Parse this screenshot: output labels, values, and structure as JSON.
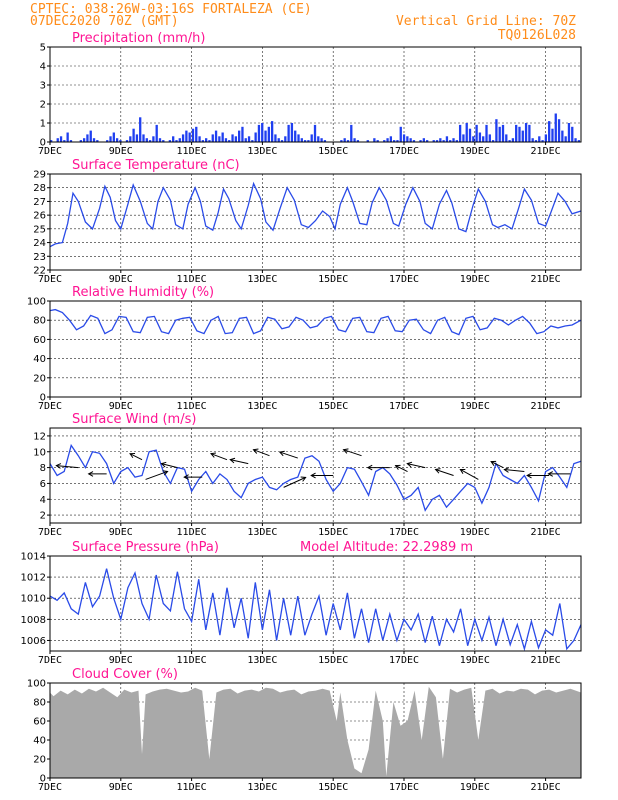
{
  "header": {
    "line1": "CPTEC:   038:26W-03:16S  FORTALEZA (CE)",
    "line2": "07DEC2020 70Z (GMT)",
    "right1": "Vertical Grid Line: 70Z",
    "right2": "TQ0126L028"
  },
  "x_ticks": [
    "7DEC",
    "9DEC",
    "11DEC",
    "13DEC",
    "15DEC",
    "17DEC",
    "19DEC",
    "21DEC"
  ],
  "colors": {
    "line": "#2a4be8",
    "bar": "#1f3ff0",
    "cloud": "#a9a9a9",
    "title": "#ff1493",
    "header": "#ff8c1a"
  },
  "chart_data": [
    {
      "id": "precip",
      "type": "bar",
      "title": "Precipitation (mm/h)",
      "ylim": [
        0,
        5
      ],
      "yticks": [
        0,
        1,
        2,
        3,
        4,
        5
      ],
      "xlim": [
        0,
        15
      ],
      "x_units": "days since 7DEC",
      "values": [
        0.1,
        0,
        0.2,
        0.3,
        0.1,
        0.5,
        0.1,
        0,
        0,
        0.1,
        0.2,
        0.4,
        0.6,
        0.2,
        0.1,
        0,
        0,
        0.1,
        0.3,
        0.5,
        0.2,
        0.1,
        0,
        0.1,
        0.3,
        0.7,
        0.4,
        1.3,
        0.4,
        0.2,
        0.1,
        0.3,
        0.9,
        0.2,
        0.1,
        0,
        0.1,
        0.3,
        0.1,
        0.2,
        0.4,
        0.6,
        0.5,
        0.7,
        0.8,
        0.3,
        0.1,
        0.2,
        0.1,
        0.4,
        0.6,
        0.3,
        0.5,
        0.2,
        0.1,
        0.4,
        0.3,
        0.6,
        0.8,
        0.2,
        0.3,
        0.1,
        0.5,
        0.9,
        1.0,
        0.6,
        0.8,
        1.1,
        0.4,
        0.2,
        0.1,
        0.3,
        0.9,
        1.0,
        0.6,
        0.4,
        0.2,
        0.1,
        0.1,
        0.4,
        0.9,
        0.3,
        0.2,
        0.1,
        0,
        0,
        0,
        0,
        0.1,
        0.2,
        0.1,
        0.9,
        0.2,
        0.1,
        0,
        0,
        0.1,
        0,
        0.2,
        0.1,
        0,
        0.1,
        0.2,
        0.3,
        0.1,
        0.1,
        0.8,
        0.4,
        0.3,
        0.2,
        0.1,
        0,
        0.1,
        0.2,
        0.1,
        0,
        0.1,
        0.1,
        0.2,
        0.1,
        0.3,
        0.1,
        0.2,
        0.1,
        0.9,
        0.4,
        1.0,
        0.7,
        0.3,
        0.9,
        0.5,
        0.3,
        0.9,
        0.4,
        0.1,
        1.2,
        0.8,
        0.9,
        0.4,
        0.1,
        0.2,
        0.9,
        0.8,
        0.6,
        1.0,
        0.9,
        0.2,
        0.1,
        0.3,
        0.1,
        0.4,
        1.1,
        0.7,
        1.5,
        1.2,
        0.6,
        0.3,
        1.0,
        0.8,
        0.2,
        0.1
      ]
    },
    {
      "id": "temp",
      "type": "line",
      "title": "Surface Temperature (nC)",
      "ylim": [
        22,
        29
      ],
      "yticks": [
        22,
        23,
        24,
        25,
        26,
        27,
        28,
        29
      ],
      "xlim": [
        0,
        15
      ],
      "x": [
        0,
        0.15,
        0.35,
        0.5,
        0.65,
        0.8,
        1.0,
        1.2,
        1.4,
        1.55,
        1.7,
        1.85,
        2.0,
        2.2,
        2.35,
        2.55,
        2.75,
        2.9,
        3.05,
        3.2,
        3.4,
        3.55,
        3.75,
        3.9,
        4.1,
        4.25,
        4.4,
        4.6,
        4.75,
        4.9,
        5.05,
        5.25,
        5.4,
        5.6,
        5.75,
        5.95,
        6.1,
        6.3,
        6.5,
        6.7,
        6.9,
        7.1,
        7.3,
        7.5,
        7.7,
        7.9,
        8.05,
        8.2,
        8.4,
        8.55,
        8.75,
        8.95,
        9.1,
        9.3,
        9.5,
        9.7,
        9.85,
        10.05,
        10.25,
        10.45,
        10.6,
        10.8,
        11.0,
        11.2,
        11.35,
        11.55,
        11.75,
        11.95,
        12.1,
        12.3,
        12.5,
        12.65,
        12.85,
        13.05,
        13.25,
        13.4,
        13.6,
        13.8,
        14.0,
        14.15,
        14.35,
        14.55,
        14.75,
        15.0
      ],
      "y": [
        23.7,
        23.9,
        24.0,
        25.4,
        27.6,
        27.0,
        25.5,
        25.0,
        26.5,
        28.1,
        27.3,
        25.6,
        25.0,
        26.8,
        28.2,
        27.0,
        25.4,
        25.0,
        27.0,
        28.0,
        27.1,
        25.3,
        25.0,
        26.8,
        28.0,
        27.0,
        25.2,
        24.9,
        26.2,
        27.9,
        27.2,
        25.6,
        25.0,
        26.7,
        28.3,
        27.2,
        25.5,
        24.9,
        26.5,
        28.0,
        27.1,
        25.3,
        25.1,
        25.6,
        26.3,
        25.9,
        25.0,
        26.8,
        28.0,
        27.0,
        25.4,
        25.3,
        26.9,
        28.0,
        27.1,
        25.4,
        25.2,
        26.8,
        28.0,
        27.0,
        25.4,
        25.0,
        26.8,
        27.8,
        26.9,
        25.0,
        24.8,
        26.7,
        27.9,
        27.0,
        25.3,
        25.1,
        25.3,
        25.0,
        26.6,
        27.9,
        27.1,
        25.4,
        25.2,
        26.2,
        27.6,
        27.0,
        26.1,
        26.3
      ]
    },
    {
      "id": "rh",
      "type": "line",
      "title": "Relative Humidity (%)",
      "ylim": [
        0,
        100
      ],
      "yticks": [
        0,
        20,
        40,
        60,
        80,
        100
      ],
      "xlim": [
        0,
        15
      ],
      "x": [
        0,
        0.15,
        0.35,
        0.55,
        0.75,
        0.95,
        1.15,
        1.35,
        1.55,
        1.75,
        1.95,
        2.15,
        2.35,
        2.55,
        2.75,
        2.95,
        3.15,
        3.35,
        3.55,
        3.75,
        3.95,
        4.15,
        4.35,
        4.55,
        4.75,
        4.95,
        5.15,
        5.35,
        5.55,
        5.75,
        5.95,
        6.15,
        6.35,
        6.55,
        6.75,
        6.95,
        7.15,
        7.35,
        7.55,
        7.75,
        7.95,
        8.15,
        8.35,
        8.55,
        8.75,
        8.95,
        9.15,
        9.35,
        9.55,
        9.75,
        9.95,
        10.15,
        10.35,
        10.55,
        10.75,
        10.95,
        11.15,
        11.35,
        11.55,
        11.75,
        11.95,
        12.15,
        12.35,
        12.55,
        12.75,
        12.95,
        13.15,
        13.35,
        13.55,
        13.75,
        13.95,
        14.15,
        14.35,
        14.55,
        14.75,
        15.0
      ],
      "y": [
        90,
        91,
        88,
        80,
        70,
        74,
        85,
        82,
        66,
        70,
        84,
        83,
        68,
        67,
        83,
        84,
        68,
        66,
        80,
        82,
        83,
        69,
        66,
        80,
        84,
        66,
        67,
        82,
        83,
        66,
        69,
        83,
        81,
        71,
        73,
        83,
        80,
        72,
        74,
        82,
        84,
        70,
        68,
        82,
        83,
        68,
        67,
        82,
        84,
        69,
        68,
        80,
        81,
        70,
        66,
        80,
        83,
        68,
        65,
        82,
        84,
        70,
        72,
        82,
        80,
        75,
        80,
        84,
        77,
        66,
        68,
        74,
        72,
        74,
        75,
        80
      ]
    },
    {
      "id": "wind",
      "type": "line",
      "title": "Surface Wind (m/s)",
      "ylim": [
        1,
        13
      ],
      "yticks": [
        2,
        4,
        6,
        8,
        10,
        12
      ],
      "xlim": [
        0,
        15
      ],
      "x": [
        0,
        0.2,
        0.4,
        0.6,
        0.8,
        1.0,
        1.2,
        1.4,
        1.6,
        1.8,
        2.0,
        2.2,
        2.4,
        2.6,
        2.8,
        3.0,
        3.2,
        3.4,
        3.6,
        3.8,
        4.0,
        4.2,
        4.4,
        4.6,
        4.8,
        5.0,
        5.2,
        5.4,
        5.6,
        5.8,
        6.0,
        6.2,
        6.4,
        6.6,
        6.8,
        7.0,
        7.2,
        7.4,
        7.6,
        7.8,
        8.0,
        8.2,
        8.4,
        8.6,
        8.8,
        9.0,
        9.2,
        9.4,
        9.6,
        9.8,
        10.0,
        10.2,
        10.4,
        10.6,
        10.8,
        11.0,
        11.2,
        11.4,
        11.6,
        11.8,
        12.0,
        12.2,
        12.4,
        12.6,
        12.8,
        13.0,
        13.2,
        13.4,
        13.6,
        13.8,
        14.0,
        14.2,
        14.4,
        14.6,
        14.8,
        15.0
      ],
      "y": [
        8.5,
        7.0,
        7.5,
        10.8,
        9.5,
        8.0,
        10.0,
        9.8,
        8.5,
        6.0,
        7.5,
        8.0,
        6.8,
        7.0,
        10.0,
        10.2,
        7.5,
        6.0,
        8.0,
        7.8,
        5.0,
        6.5,
        7.5,
        6.0,
        7.2,
        6.5,
        5.0,
        4.2,
        6.0,
        6.5,
        6.8,
        5.5,
        5.2,
        6.0,
        6.5,
        6.8,
        9.2,
        9.5,
        8.8,
        6.5,
        5.0,
        6.0,
        8.0,
        7.8,
        6.2,
        4.5,
        7.5,
        8.0,
        7.2,
        5.8,
        4.0,
        4.5,
        5.5,
        2.6,
        4.0,
        4.5,
        3.0,
        4.0,
        5.0,
        6.0,
        5.5,
        3.5,
        5.5,
        8.5,
        7.0,
        6.5,
        6.0,
        7.0,
        5.5,
        3.8,
        7.5,
        8.0,
        6.8,
        5.5,
        8.5,
        8.8
      ]
    },
    {
      "id": "pressure",
      "type": "line",
      "title": "Surface Pressure (hPa)",
      "annotation": "Model Altitude: 22.2989 m",
      "ylim": [
        1005,
        1014
      ],
      "yticks": [
        1006,
        1008,
        1010,
        1012,
        1014
      ],
      "xlim": [
        0,
        15
      ],
      "x": [
        0,
        0.2,
        0.4,
        0.6,
        0.8,
        1.0,
        1.2,
        1.4,
        1.6,
        1.8,
        2.0,
        2.2,
        2.4,
        2.6,
        2.8,
        3.0,
        3.2,
        3.4,
        3.6,
        3.8,
        4.0,
        4.2,
        4.4,
        4.6,
        4.8,
        5.0,
        5.2,
        5.4,
        5.6,
        5.8,
        6.0,
        6.2,
        6.4,
        6.6,
        6.8,
        7.0,
        7.2,
        7.4,
        7.6,
        7.8,
        8.0,
        8.2,
        8.4,
        8.6,
        8.8,
        9.0,
        9.2,
        9.4,
        9.6,
        9.8,
        10.0,
        10.2,
        10.4,
        10.6,
        10.8,
        11.0,
        11.2,
        11.4,
        11.6,
        11.8,
        12.0,
        12.2,
        12.4,
        12.6,
        12.8,
        13.0,
        13.2,
        13.4,
        13.6,
        13.8,
        14.0,
        14.2,
        14.4,
        14.6,
        14.8,
        15.0
      ],
      "y": [
        1010.2,
        1009.8,
        1010.5,
        1009.0,
        1008.5,
        1011.5,
        1009.2,
        1010.2,
        1012.8,
        1010.0,
        1008.0,
        1011.0,
        1012.4,
        1009.5,
        1008.0,
        1012.2,
        1009.5,
        1008.8,
        1012.5,
        1009.0,
        1007.8,
        1011.8,
        1007.0,
        1010.5,
        1006.5,
        1011.0,
        1007.2,
        1010.0,
        1006.2,
        1011.5,
        1007.0,
        1010.8,
        1006.0,
        1010.0,
        1006.5,
        1010.2,
        1006.5,
        1008.5,
        1010.2,
        1006.5,
        1009.5,
        1007.0,
        1010.5,
        1006.2,
        1009.0,
        1005.8,
        1009.0,
        1006.0,
        1008.5,
        1006.0,
        1008.0,
        1007.0,
        1008.5,
        1005.8,
        1008.3,
        1005.5,
        1008.0,
        1006.8,
        1009.0,
        1005.5,
        1008.0,
        1006.0,
        1008.2,
        1005.5,
        1008.0,
        1005.6,
        1007.5,
        1005.2,
        1007.8,
        1005.3,
        1007.0,
        1006.5,
        1009.5,
        1005.2,
        1006.0,
        1007.5
      ]
    },
    {
      "id": "cloud",
      "type": "area",
      "title": "Cloud Cover (%)",
      "ylim": [
        0,
        100
      ],
      "yticks": [
        0,
        20,
        40,
        60,
        80,
        100
      ],
      "xlim": [
        0,
        15
      ],
      "x": [
        0,
        0.1,
        0.3,
        0.5,
        0.7,
        0.9,
        1.1,
        1.3,
        1.5,
        1.7,
        1.9,
        2.1,
        2.3,
        2.5,
        2.6,
        2.7,
        2.9,
        3.1,
        3.3,
        3.5,
        3.7,
        3.9,
        4.1,
        4.3,
        4.5,
        4.7,
        4.9,
        5.1,
        5.3,
        5.5,
        5.7,
        5.9,
        6.1,
        6.3,
        6.5,
        6.7,
        6.9,
        7.1,
        7.3,
        7.5,
        7.7,
        7.9,
        8.1,
        8.2,
        8.4,
        8.6,
        8.8,
        9.0,
        9.2,
        9.4,
        9.5,
        9.7,
        9.9,
        10.1,
        10.3,
        10.5,
        10.7,
        10.9,
        11.1,
        11.3,
        11.5,
        11.7,
        11.9,
        12.1,
        12.3,
        12.5,
        12.7,
        12.9,
        13.1,
        13.3,
        13.5,
        13.7,
        13.9,
        14.1,
        14.3,
        14.5,
        14.7,
        15.0
      ],
      "y": [
        90,
        86,
        92,
        88,
        93,
        89,
        94,
        91,
        95,
        90,
        85,
        93,
        90,
        92,
        25,
        88,
        91,
        93,
        94,
        92,
        90,
        91,
        95,
        92,
        20,
        90,
        93,
        94,
        89,
        92,
        93,
        91,
        95,
        94,
        90,
        92,
        93,
        88,
        91,
        92,
        94,
        92,
        60,
        90,
        40,
        10,
        5,
        30,
        92,
        60,
        2,
        80,
        55,
        60,
        92,
        40,
        96,
        85,
        20,
        94,
        90,
        93,
        95,
        40,
        92,
        94,
        89,
        92,
        91,
        94,
        93,
        88,
        92,
        93,
        90,
        92,
        94,
        90
      ]
    }
  ]
}
